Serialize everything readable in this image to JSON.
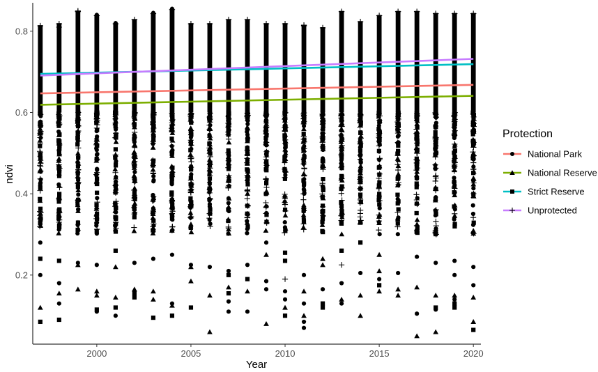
{
  "chart_data": {
    "type": "scatter",
    "title": "",
    "xlabel": "Year",
    "ylabel": "ndvi",
    "xlim": [
      1996.6,
      2020.4
    ],
    "ylim": [
      0.03,
      0.87
    ],
    "xticks": [
      2000,
      2005,
      2010,
      2015,
      2020
    ],
    "yticks": [
      0.2,
      0.4,
      0.6,
      0.8
    ],
    "tick_labels_x": [
      "2000",
      "2005",
      "2010",
      "2015",
      "2020"
    ],
    "tick_labels_y": [
      "0.2",
      "0.4",
      "0.6",
      "0.8"
    ],
    "grid": false,
    "years": [
      1997,
      1998,
      1999,
      2000,
      2001,
      2002,
      2003,
      2004,
      2005,
      2006,
      2007,
      2008,
      2009,
      2010,
      2011,
      2012,
      2013,
      2014,
      2015,
      2016,
      2017,
      2018,
      2019,
      2020
    ],
    "column_range": {
      "min": [
        0.085,
        0.09,
        0.165,
        0.11,
        0.1,
        0.145,
        0.095,
        0.1,
        0.12,
        0.06,
        0.11,
        0.11,
        0.08,
        0.1,
        0.07,
        0.12,
        0.12,
        0.1,
        0.16,
        0.145,
        0.05,
        0.06,
        0.12,
        0.065
      ],
      "max": [
        0.815,
        0.82,
        0.85,
        0.84,
        0.82,
        0.83,
        0.845,
        0.855,
        0.82,
        0.82,
        0.83,
        0.83,
        0.82,
        0.82,
        0.815,
        0.81,
        0.85,
        0.825,
        0.84,
        0.85,
        0.85,
        0.845,
        0.845,
        0.845
      ]
    },
    "legend": {
      "title": "Protection",
      "position": "right",
      "entries": [
        {
          "label": "National Park",
          "color": "#F8766D",
          "marker": "circle"
        },
        {
          "label": "National Reserve",
          "color": "#7CAE00",
          "marker": "triangle"
        },
        {
          "label": "Strict Reserve",
          "color": "#00BFC4",
          "marker": "square"
        },
        {
          "label": "Unprotected",
          "color": "#C77CFF",
          "marker": "plus"
        }
      ]
    },
    "series": [
      {
        "name": "National Park",
        "type": "trend_line",
        "x": [
          1997,
          2020
        ],
        "y": [
          0.647,
          0.668
        ],
        "color": "#F8766D"
      },
      {
        "name": "National Reserve",
        "type": "trend_line",
        "x": [
          1997,
          2020
        ],
        "y": [
          0.619,
          0.641
        ],
        "color": "#7CAE00"
      },
      {
        "name": "Strict Reserve",
        "type": "trend_line",
        "x": [
          1997,
          2020
        ],
        "y": [
          0.695,
          0.719
        ],
        "color": "#00BFC4"
      },
      {
        "name": "Unprotected",
        "type": "trend_line",
        "x": [
          1997,
          2020
        ],
        "y": [
          0.691,
          0.732
        ],
        "color": "#C77CFF"
      }
    ],
    "outliers": [
      {
        "x": 1997,
        "y": 0.24,
        "marker": "square"
      },
      {
        "x": 1997,
        "y": 0.2,
        "marker": "circle"
      },
      {
        "x": 1997,
        "y": 0.12,
        "marker": "triangle"
      },
      {
        "x": 1997,
        "y": 0.085,
        "marker": "square"
      },
      {
        "x": 1997,
        "y": 0.28,
        "marker": "circle"
      },
      {
        "x": 1998,
        "y": 0.235,
        "marker": "square"
      },
      {
        "x": 1998,
        "y": 0.18,
        "marker": "circle"
      },
      {
        "x": 1998,
        "y": 0.155,
        "marker": "triangle"
      },
      {
        "x": 1998,
        "y": 0.13,
        "marker": "circle"
      },
      {
        "x": 1998,
        "y": 0.09,
        "marker": "square"
      },
      {
        "x": 1998,
        "y": 0.33,
        "marker": "plus"
      },
      {
        "x": 1998,
        "y": 0.81,
        "marker": "plus"
      },
      {
        "x": 1999,
        "y": 0.23,
        "marker": "circle"
      },
      {
        "x": 1999,
        "y": 0.225,
        "marker": "triangle"
      },
      {
        "x": 1999,
        "y": 0.165,
        "marker": "triangle"
      },
      {
        "x": 1999,
        "y": 0.85,
        "marker": "plus"
      },
      {
        "x": 2000,
        "y": 0.225,
        "marker": "circle"
      },
      {
        "x": 2000,
        "y": 0.16,
        "marker": "triangle"
      },
      {
        "x": 2000,
        "y": 0.15,
        "marker": "triangle"
      },
      {
        "x": 2000,
        "y": 0.115,
        "marker": "square"
      },
      {
        "x": 2000,
        "y": 0.11,
        "marker": "circle"
      },
      {
        "x": 2000,
        "y": 0.84,
        "marker": "circle"
      },
      {
        "x": 2001,
        "y": 0.22,
        "marker": "triangle"
      },
      {
        "x": 2001,
        "y": 0.145,
        "marker": "triangle"
      },
      {
        "x": 2001,
        "y": 0.12,
        "marker": "square"
      },
      {
        "x": 2001,
        "y": 0.1,
        "marker": "circle"
      },
      {
        "x": 2001,
        "y": 0.26,
        "marker": "square"
      },
      {
        "x": 2001,
        "y": 0.82,
        "marker": "circle"
      },
      {
        "x": 2002,
        "y": 0.23,
        "marker": "circle"
      },
      {
        "x": 2002,
        "y": 0.165,
        "marker": "triangle"
      },
      {
        "x": 2002,
        "y": 0.155,
        "marker": "square"
      },
      {
        "x": 2002,
        "y": 0.145,
        "marker": "square"
      },
      {
        "x": 2003,
        "y": 0.24,
        "marker": "circle"
      },
      {
        "x": 2003,
        "y": 0.16,
        "marker": "triangle"
      },
      {
        "x": 2003,
        "y": 0.14,
        "marker": "triangle"
      },
      {
        "x": 2003,
        "y": 0.095,
        "marker": "square"
      },
      {
        "x": 2003,
        "y": 0.845,
        "marker": "circle"
      },
      {
        "x": 2004,
        "y": 0.25,
        "marker": "circle"
      },
      {
        "x": 2004,
        "y": 0.13,
        "marker": "circle"
      },
      {
        "x": 2004,
        "y": 0.125,
        "marker": "triangle"
      },
      {
        "x": 2004,
        "y": 0.1,
        "marker": "square"
      },
      {
        "x": 2004,
        "y": 0.855,
        "marker": "circle"
      },
      {
        "x": 2005,
        "y": 0.225,
        "marker": "circle"
      },
      {
        "x": 2005,
        "y": 0.22,
        "marker": "triangle"
      },
      {
        "x": 2005,
        "y": 0.185,
        "marker": "triangle"
      },
      {
        "x": 2005,
        "y": 0.12,
        "marker": "square"
      },
      {
        "x": 2005,
        "y": 0.325,
        "marker": "triangle"
      },
      {
        "x": 2006,
        "y": 0.22,
        "marker": "circle"
      },
      {
        "x": 2006,
        "y": 0.15,
        "marker": "triangle"
      },
      {
        "x": 2006,
        "y": 0.06,
        "marker": "triangle"
      },
      {
        "x": 2006,
        "y": 0.385,
        "marker": "circle"
      },
      {
        "x": 2007,
        "y": 0.21,
        "marker": "circle"
      },
      {
        "x": 2007,
        "y": 0.2,
        "marker": "square"
      },
      {
        "x": 2007,
        "y": 0.17,
        "marker": "triangle"
      },
      {
        "x": 2007,
        "y": 0.155,
        "marker": "square"
      },
      {
        "x": 2007,
        "y": 0.135,
        "marker": "circle"
      },
      {
        "x": 2007,
        "y": 0.11,
        "marker": "circle"
      },
      {
        "x": 2008,
        "y": 0.225,
        "marker": "circle"
      },
      {
        "x": 2008,
        "y": 0.19,
        "marker": "square"
      },
      {
        "x": 2008,
        "y": 0.16,
        "marker": "triangle"
      },
      {
        "x": 2008,
        "y": 0.11,
        "marker": "circle"
      },
      {
        "x": 2009,
        "y": 0.28,
        "marker": "circle"
      },
      {
        "x": 2009,
        "y": 0.25,
        "marker": "triangle"
      },
      {
        "x": 2009,
        "y": 0.185,
        "marker": "circle"
      },
      {
        "x": 2009,
        "y": 0.165,
        "marker": "circle"
      },
      {
        "x": 2009,
        "y": 0.08,
        "marker": "triangle"
      },
      {
        "x": 2010,
        "y": 0.255,
        "marker": "square"
      },
      {
        "x": 2010,
        "y": 0.235,
        "marker": "square"
      },
      {
        "x": 2010,
        "y": 0.19,
        "marker": "plus"
      },
      {
        "x": 2010,
        "y": 0.16,
        "marker": "circle"
      },
      {
        "x": 2010,
        "y": 0.14,
        "marker": "circle"
      },
      {
        "x": 2010,
        "y": 0.12,
        "marker": "triangle"
      },
      {
        "x": 2010,
        "y": 0.1,
        "marker": "square"
      },
      {
        "x": 2011,
        "y": 0.2,
        "marker": "circle"
      },
      {
        "x": 2011,
        "y": 0.16,
        "marker": "triangle"
      },
      {
        "x": 2011,
        "y": 0.13,
        "marker": "circle"
      },
      {
        "x": 2011,
        "y": 0.1,
        "marker": "triangle"
      },
      {
        "x": 2011,
        "y": 0.085,
        "marker": "circle"
      },
      {
        "x": 2011,
        "y": 0.07,
        "marker": "circle"
      },
      {
        "x": 2011,
        "y": 0.815,
        "marker": "plus"
      },
      {
        "x": 2012,
        "y": 0.24,
        "marker": "triangle"
      },
      {
        "x": 2012,
        "y": 0.225,
        "marker": "triangle"
      },
      {
        "x": 2012,
        "y": 0.165,
        "marker": "circle"
      },
      {
        "x": 2012,
        "y": 0.13,
        "marker": "square"
      },
      {
        "x": 2012,
        "y": 0.12,
        "marker": "square"
      },
      {
        "x": 2013,
        "y": 0.26,
        "marker": "square"
      },
      {
        "x": 2013,
        "y": 0.225,
        "marker": "plus"
      },
      {
        "x": 2013,
        "y": 0.18,
        "marker": "circle"
      },
      {
        "x": 2013,
        "y": 0.14,
        "marker": "triangle"
      },
      {
        "x": 2013,
        "y": 0.13,
        "marker": "circle"
      },
      {
        "x": 2014,
        "y": 0.28,
        "marker": "square"
      },
      {
        "x": 2014,
        "y": 0.205,
        "marker": "circle"
      },
      {
        "x": 2014,
        "y": 0.15,
        "marker": "triangle"
      },
      {
        "x": 2014,
        "y": 0.1,
        "marker": "triangle"
      },
      {
        "x": 2014,
        "y": 0.385,
        "marker": "plus"
      },
      {
        "x": 2015,
        "y": 0.25,
        "marker": "triangle"
      },
      {
        "x": 2015,
        "y": 0.21,
        "marker": "triangle"
      },
      {
        "x": 2015,
        "y": 0.19,
        "marker": "circle"
      },
      {
        "x": 2015,
        "y": 0.175,
        "marker": "square"
      },
      {
        "x": 2015,
        "y": 0.16,
        "marker": "triangle"
      },
      {
        "x": 2016,
        "y": 0.205,
        "marker": "circle"
      },
      {
        "x": 2016,
        "y": 0.165,
        "marker": "triangle"
      },
      {
        "x": 2016,
        "y": 0.15,
        "marker": "triangle"
      },
      {
        "x": 2017,
        "y": 0.245,
        "marker": "circle"
      },
      {
        "x": 2017,
        "y": 0.17,
        "marker": "triangle"
      },
      {
        "x": 2017,
        "y": 0.105,
        "marker": "circle"
      },
      {
        "x": 2017,
        "y": 0.05,
        "marker": "triangle"
      },
      {
        "x": 2018,
        "y": 0.23,
        "marker": "circle"
      },
      {
        "x": 2018,
        "y": 0.15,
        "marker": "triangle"
      },
      {
        "x": 2018,
        "y": 0.12,
        "marker": "square"
      },
      {
        "x": 2018,
        "y": 0.115,
        "marker": "circle"
      },
      {
        "x": 2018,
        "y": 0.06,
        "marker": "triangle"
      },
      {
        "x": 2019,
        "y": 0.235,
        "marker": "circle"
      },
      {
        "x": 2019,
        "y": 0.2,
        "marker": "circle"
      },
      {
        "x": 2019,
        "y": 0.15,
        "marker": "triangle"
      },
      {
        "x": 2019,
        "y": 0.13,
        "marker": "square"
      },
      {
        "x": 2019,
        "y": 0.12,
        "marker": "square"
      },
      {
        "x": 2019,
        "y": 0.14,
        "marker": "circle"
      },
      {
        "x": 2020,
        "y": 0.22,
        "marker": "circle"
      },
      {
        "x": 2020,
        "y": 0.175,
        "marker": "circle"
      },
      {
        "x": 2020,
        "y": 0.145,
        "marker": "triangle"
      },
      {
        "x": 2020,
        "y": 0.085,
        "marker": "triangle"
      },
      {
        "x": 2020,
        "y": 0.065,
        "marker": "square"
      }
    ]
  }
}
